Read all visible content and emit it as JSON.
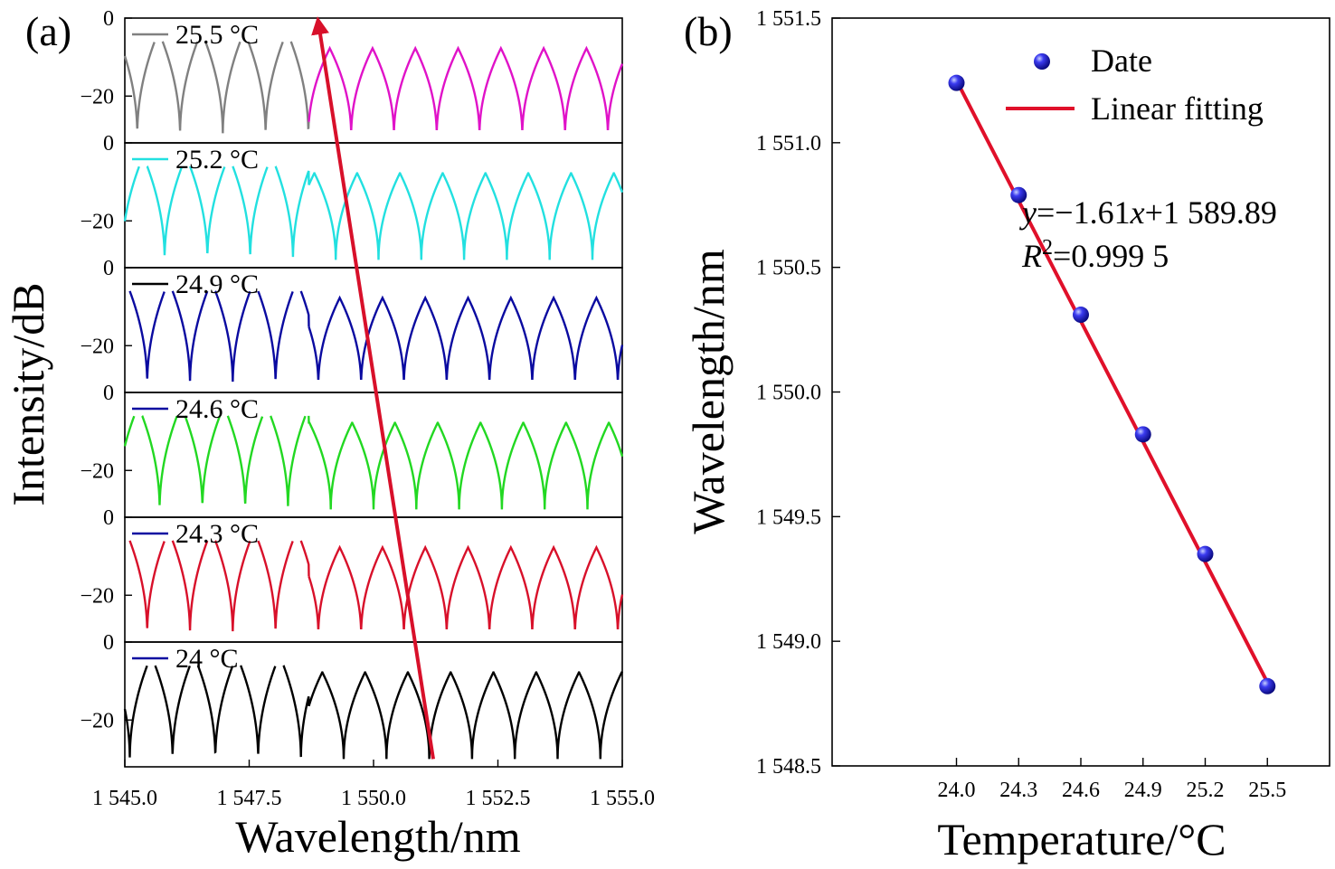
{
  "chart_data": [
    {
      "panel_label": "(a)",
      "type": "line",
      "xlabel": "Wavelength/nm",
      "ylabel": "Intensity/dB",
      "xlim": [
        1545.0,
        1555.0
      ],
      "xticks": [
        "1 545.0",
        "1 547.5",
        "1 550.0",
        "1 552.5",
        "1 555.0"
      ],
      "subplot_ylim": [
        -32,
        0
      ],
      "subplot_yticks": [
        "0",
        "−20"
      ],
      "fsr": 0.86,
      "dip_min": -30,
      "peak_max": -6,
      "series": [
        {
          "name": "25.5 °C",
          "color": "#e012c8",
          "legend_color": "#808080",
          "split_color": "#808080",
          "split_x": 1548.7,
          "dip_phase": 1545.25
        },
        {
          "name": "25.2 °C",
          "color": "#22e0e0",
          "legend_color": "#22e0e0",
          "split_color": "#22e0e0",
          "split_x": 1548.7,
          "dip_phase": 1545.8
        },
        {
          "name": "24.9 °C",
          "color": "#0a0aa0",
          "legend_color": "#000000",
          "split_color": "#0a0aa0",
          "split_x": 1548.7,
          "dip_phase": 1545.45
        },
        {
          "name": "24.6 °C",
          "color": "#22d822",
          "legend_color": "#0a0aa0",
          "split_color": "#22d822",
          "split_x": 1548.7,
          "dip_phase": 1545.7
        },
        {
          "name": "24.3 °C",
          "color": "#d8102a",
          "legend_color": "#0a0aa0",
          "split_color": "#d8102a",
          "split_x": 1548.7,
          "dip_phase": 1545.45
        },
        {
          "name": "24 °C",
          "color": "#000000",
          "legend_color": "#0a0aa0",
          "split_color": "#000000",
          "split_x": 1548.7,
          "dip_phase": 1545.1
        }
      ],
      "arrow": {
        "from": [
          1551.2,
          -30
        ],
        "to": [
          1548.9,
          0
        ],
        "color": "#d8102a"
      }
    },
    {
      "panel_label": "(b)",
      "type": "scatter",
      "xlabel": "Temperature/°C",
      "ylabel": "Wavelength/nm",
      "xlim": [
        23.4,
        25.8
      ],
      "ylim": [
        1548.5,
        1551.5
      ],
      "xticks": [
        {
          "value": 24.0,
          "label": "24.0"
        },
        {
          "value": 24.3,
          "label": "24.3"
        },
        {
          "value": 24.6,
          "label": "24.6"
        },
        {
          "value": 24.9,
          "label": "24.9"
        },
        {
          "value": 25.2,
          "label": "25.2"
        },
        {
          "value": 25.5,
          "label": "25.5"
        }
      ],
      "yticks": [
        {
          "value": 1548.5,
          "label": "1 548.5"
        },
        {
          "value": 1549.0,
          "label": "1 549.0"
        },
        {
          "value": 1549.5,
          "label": "1 549.5"
        },
        {
          "value": 1550.0,
          "label": "1 550.0"
        },
        {
          "value": 1550.5,
          "label": "1 550.5"
        },
        {
          "value": 1551.0,
          "label": "1 551.0"
        },
        {
          "value": 1551.5,
          "label": "1 551.5"
        }
      ],
      "points": [
        {
          "x": 24.0,
          "y": 1551.24
        },
        {
          "x": 24.3,
          "y": 1550.79
        },
        {
          "x": 24.6,
          "y": 1550.31
        },
        {
          "x": 24.9,
          "y": 1549.83
        },
        {
          "x": 25.2,
          "y": 1549.35
        },
        {
          "x": 25.5,
          "y": 1548.82
        }
      ],
      "fit": {
        "slope": -1.61,
        "intercept": 1589.89,
        "x_range": [
          24.0,
          25.5
        ],
        "color": "#e0102a"
      },
      "legend": {
        "points_label": "Date",
        "line_label": "Linear fitting",
        "position": "top-right"
      },
      "annotation": {
        "eq_y": "y",
        "eq_mid": "=−1.61",
        "eq_x": "x",
        "eq_tail": "+1 589.89",
        "r_letter": "R",
        "r_sup": "2",
        "r_value": "=0.999 5"
      }
    }
  ]
}
